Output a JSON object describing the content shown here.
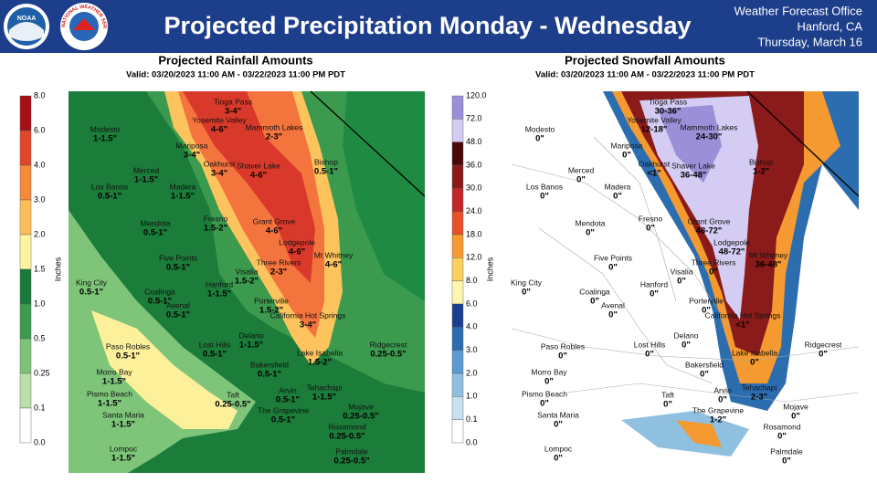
{
  "header": {
    "title": "Projected Precipitation Monday - Wednesday",
    "office": [
      "Weather Forecast Office",
      "Hanford, CA",
      "Thursday, March 16"
    ],
    "logos": [
      "NOAA",
      "NATIONAL WEATHER SERVICE"
    ]
  },
  "maps": [
    {
      "title": "Projected Rainfall Amounts",
      "valid": "Valid: 03/20/2023 11:00 AM - 03/22/2023 11:00 PM PDT",
      "unit": "Inches",
      "scale": [
        "8.0",
        "6.0",
        "4.0",
        "3.0",
        "2.0",
        "1.5",
        "1.0",
        "0.5",
        "0.25",
        "0.1",
        "0.0"
      ],
      "places": [
        {
          "name": "Tioga Pass",
          "amount": "3-4\""
        },
        {
          "name": "Modesto",
          "amount": "1-1.5\""
        },
        {
          "name": "Yosemite Valley",
          "amount": "4-6\""
        },
        {
          "name": "Mammoth Lakes",
          "amount": "2-3\""
        },
        {
          "name": "Mariposa",
          "amount": "3-4\""
        },
        {
          "name": "Merced",
          "amount": "1-1.5\""
        },
        {
          "name": "Oakhurst",
          "amount": "3-4\""
        },
        {
          "name": "Shaver Lake",
          "amount": "4-6\""
        },
        {
          "name": "Bishop",
          "amount": "0.5-1\""
        },
        {
          "name": "Madera",
          "amount": "1-1.5\""
        },
        {
          "name": "Los Banos",
          "amount": "0.5-1\""
        },
        {
          "name": "Fresno",
          "amount": "1.5-2\""
        },
        {
          "name": "Grant Grove",
          "amount": "4-6\""
        },
        {
          "name": "Mendota",
          "amount": "0.5-1\""
        },
        {
          "name": "Lodgepole",
          "amount": "4-6\""
        },
        {
          "name": "Mt Whitney",
          "amount": "4-6\""
        },
        {
          "name": "Three Rivers",
          "amount": "2-3\""
        },
        {
          "name": "Five Points",
          "amount": "0.5-1\""
        },
        {
          "name": "Visalia",
          "amount": "1.5-2\""
        },
        {
          "name": "Hanford",
          "amount": "1-1.5\""
        },
        {
          "name": "King City",
          "amount": "0.5-1\""
        },
        {
          "name": "Coalinga",
          "amount": "0.5-1\""
        },
        {
          "name": "Avenal",
          "amount": "0.5-1\""
        },
        {
          "name": "Porterville",
          "amount": "1.5-2\""
        },
        {
          "name": "California Hot Springs",
          "amount": "3-4\""
        },
        {
          "name": "Delano",
          "amount": "1-1.5\""
        },
        {
          "name": "Paso Robles",
          "amount": "0.5-1\""
        },
        {
          "name": "Lost Hills",
          "amount": "0.5-1\""
        },
        {
          "name": "Lake Isabella",
          "amount": "1.5-2\""
        },
        {
          "name": "Ridgecrest",
          "amount": "0.25-0.5\""
        },
        {
          "name": "Bakersfield",
          "amount": "0.5-1\""
        },
        {
          "name": "Morro Bay",
          "amount": "1-1.5\""
        },
        {
          "name": "Pismo Beach",
          "amount": "1-1.5\""
        },
        {
          "name": "Taft",
          "amount": "0.25-0.5\""
        },
        {
          "name": "Arvin",
          "amount": "0.5-1\""
        },
        {
          "name": "Tehachapi",
          "amount": "1-1.5\""
        },
        {
          "name": "The Grapevine",
          "amount": "0.5-1\""
        },
        {
          "name": "Mojave",
          "amount": "0.25-0.5\""
        },
        {
          "name": "Santa Maria",
          "amount": "1-1.5\""
        },
        {
          "name": "Rosamond",
          "amount": "0.25-0.5\""
        },
        {
          "name": "Lompoc",
          "amount": "1-1.5\""
        },
        {
          "name": "Palmdale",
          "amount": "0.25-0.5\""
        }
      ]
    },
    {
      "title": "Projected Snowfall Amounts",
      "valid": "Valid: 03/20/2023 11:00 AM - 03/22/2023 11:00 PM PDT",
      "unit": "Inches",
      "scale": [
        "120.0",
        "72.0",
        "48.0",
        "36.0",
        "30.0",
        "24.0",
        "18.0",
        "12.0",
        "8.0",
        "6.0",
        "4.0",
        "3.0",
        "2.0",
        "1.0",
        "0.1",
        "0.0"
      ],
      "places": [
        {
          "name": "Tioga Pass",
          "amount": "30-36\""
        },
        {
          "name": "Modesto",
          "amount": "0\""
        },
        {
          "name": "Yosemite Valley",
          "amount": "12-18\""
        },
        {
          "name": "Mammoth Lakes",
          "amount": "24-30\""
        },
        {
          "name": "Mariposa",
          "amount": "0\""
        },
        {
          "name": "Merced",
          "amount": "0\""
        },
        {
          "name": "Oakhurst",
          "amount": "<1\""
        },
        {
          "name": "Shaver Lake",
          "amount": "36-48\""
        },
        {
          "name": "Bishop",
          "amount": "1-2\""
        },
        {
          "name": "Madera",
          "amount": "0\""
        },
        {
          "name": "Los Banos",
          "amount": "0\""
        },
        {
          "name": "Fresno",
          "amount": "0\""
        },
        {
          "name": "Grant Grove",
          "amount": "48-72\""
        },
        {
          "name": "Mendota",
          "amount": "0\""
        },
        {
          "name": "Lodgepole",
          "amount": "48-72\""
        },
        {
          "name": "Mt Whitney",
          "amount": "36-48\""
        },
        {
          "name": "Three Rivers",
          "amount": "0\""
        },
        {
          "name": "Five Points",
          "amount": "0\""
        },
        {
          "name": "Visalia",
          "amount": "0\""
        },
        {
          "name": "Hanford",
          "amount": "0\""
        },
        {
          "name": "King City",
          "amount": "0\""
        },
        {
          "name": "Coalinga",
          "amount": "0\""
        },
        {
          "name": "Avenal",
          "amount": "0\""
        },
        {
          "name": "Porterville",
          "amount": "0\""
        },
        {
          "name": "California Hot Springs",
          "amount": "<1\""
        },
        {
          "name": "Delano",
          "amount": "0\""
        },
        {
          "name": "Paso Robles",
          "amount": "0\""
        },
        {
          "name": "Lost Hills",
          "amount": "0\""
        },
        {
          "name": "Lake Isabella",
          "amount": "0\""
        },
        {
          "name": "Ridgecrest",
          "amount": "0\""
        },
        {
          "name": "Bakersfield",
          "amount": "0\""
        },
        {
          "name": "Morro Bay",
          "amount": "0\""
        },
        {
          "name": "Pismo Beach",
          "amount": "0\""
        },
        {
          "name": "Taft",
          "amount": "0\""
        },
        {
          "name": "Arvin",
          "amount": "0\""
        },
        {
          "name": "Tehachapi",
          "amount": "2-3\""
        },
        {
          "name": "The Grapevine",
          "amount": "1-2\""
        },
        {
          "name": "Mojave",
          "amount": "0\""
        },
        {
          "name": "Santa Maria",
          "amount": "0\""
        },
        {
          "name": "Rosamond",
          "amount": "0\""
        },
        {
          "name": "Lompoc",
          "amount": "0\""
        },
        {
          "name": "Palmdale",
          "amount": "0\""
        }
      ]
    }
  ]
}
